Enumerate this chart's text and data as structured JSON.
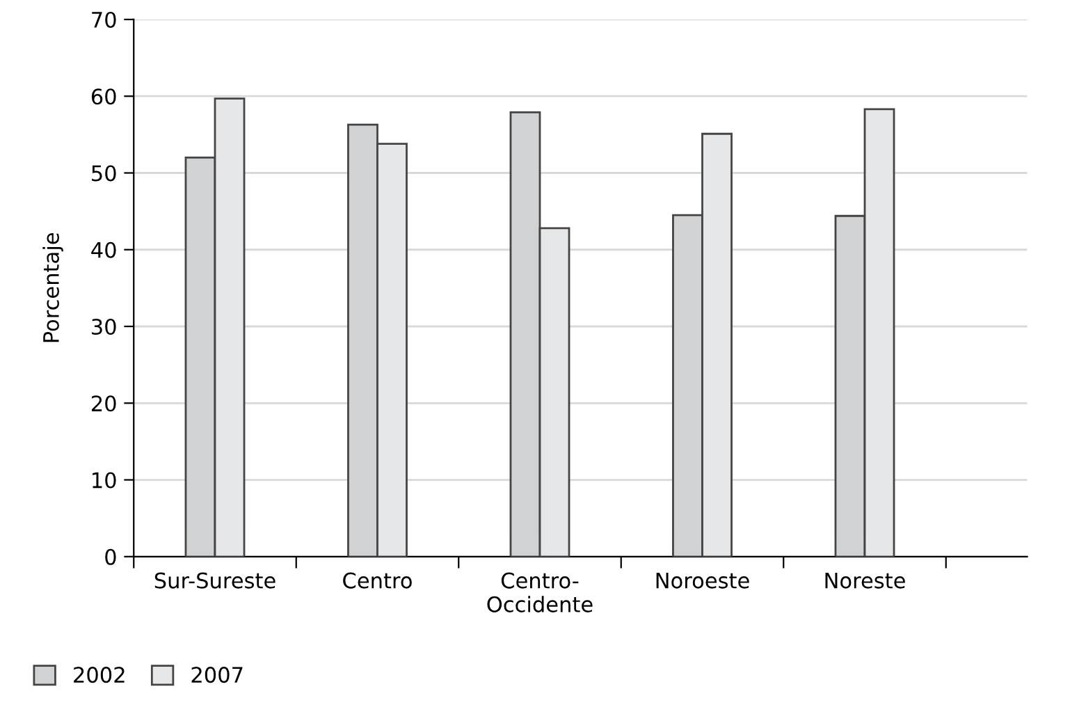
{
  "chart_data": {
    "type": "bar",
    "ylabel": "Porcentaje",
    "categories": [
      "Sur-Sureste",
      "Centro",
      "Centro-\nOccidente",
      "Noroeste",
      "Noreste"
    ],
    "series": [
      {
        "name": "2002",
        "color": "#d1d2d4",
        "values": [
          52.0,
          56.3,
          57.9,
          44.5,
          44.4
        ]
      },
      {
        "name": "2007",
        "color": "#e6e7e8",
        "values": [
          59.7,
          53.8,
          42.8,
          55.1,
          58.3
        ]
      }
    ],
    "ylim": [
      0,
      70
    ],
    "yticks": [
      0,
      10,
      20,
      30,
      40,
      50,
      60,
      70
    ],
    "grid": "y",
    "legend": "bottom left"
  }
}
